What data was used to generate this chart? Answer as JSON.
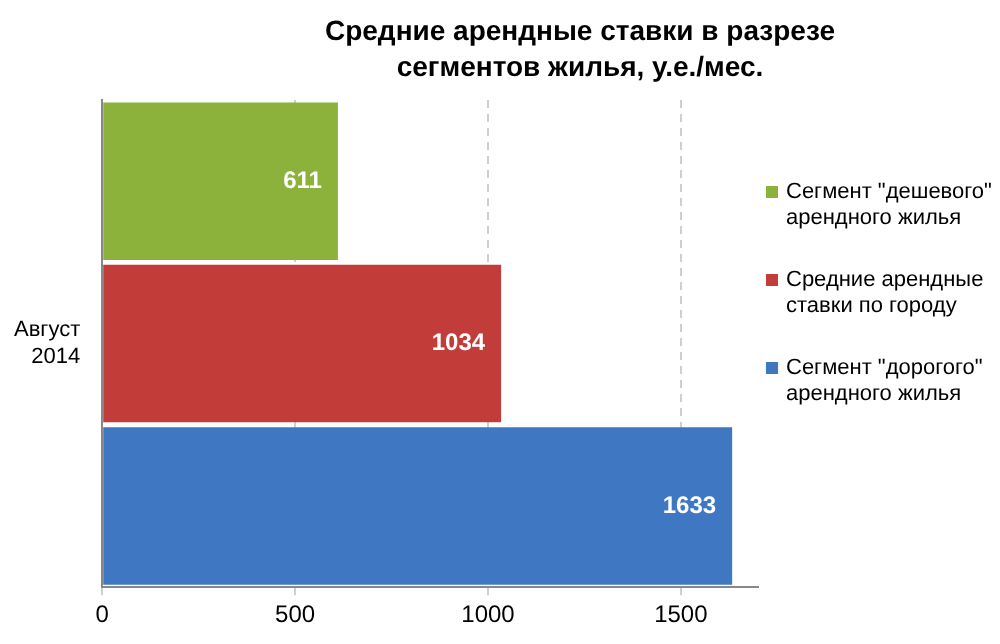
{
  "chart_data": {
    "type": "bar",
    "orientation": "horizontal",
    "title": "Средние арендные ставки в разрезе сегментов жилья, у.е./мес.",
    "categories": [
      null,
      "Август 2014",
      null
    ],
    "series": [
      {
        "name": "Сегмент \"дешевого\" арендного жилья",
        "color": "#8cb23c",
        "values": [
          611,
          null,
          null
        ]
      },
      {
        "name": "Средние арендные ставки по городу",
        "color": "#c23d3a",
        "values": [
          null,
          1034,
          null
        ]
      },
      {
        "name": "Сегмент \"дорогого\" арендного жилья",
        "color": "#3f77c3",
        "values": [
          null,
          null,
          1633
        ]
      }
    ],
    "xlim": [
      0,
      1700
    ],
    "xticks": [
      0,
      500,
      1000,
      1500
    ],
    "grid": "x",
    "legend": "right",
    "data_labels": true
  }
}
